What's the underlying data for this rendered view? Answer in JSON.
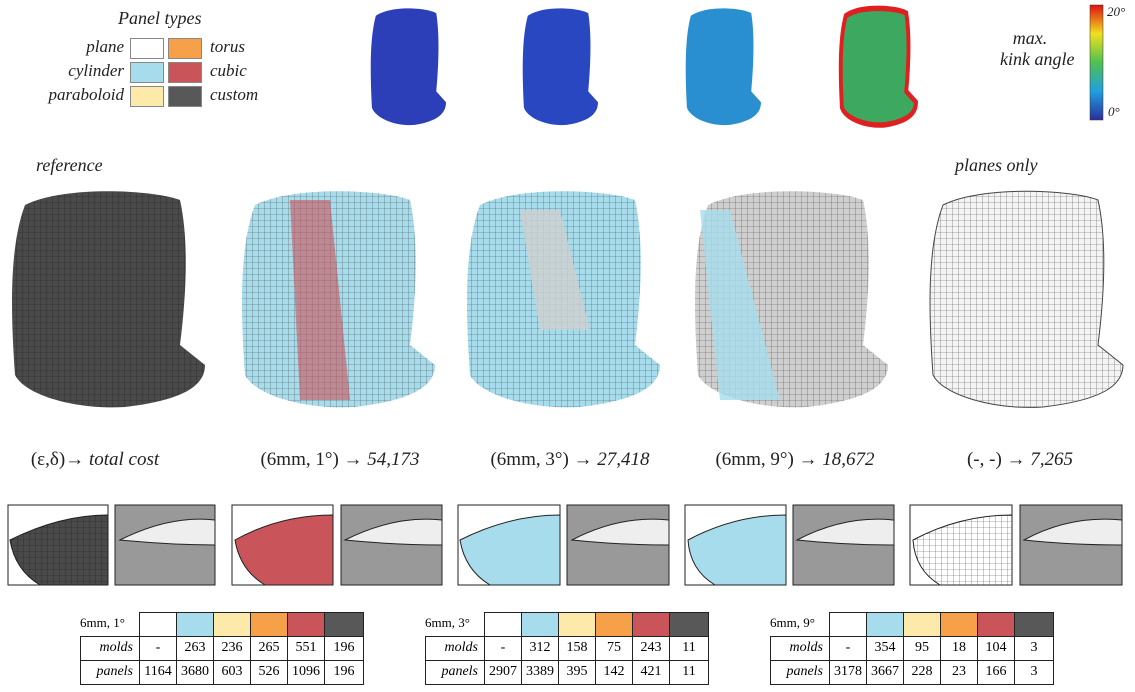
{
  "legend": {
    "title": "Panel types",
    "items": [
      {
        "label": "plane",
        "color": "#ffffff"
      },
      {
        "label": "cylinder",
        "color": "#a6dcec"
      },
      {
        "label": "paraboloid",
        "color": "#fde9a9"
      },
      {
        "label": "torus",
        "color": "#f7a04a"
      },
      {
        "label": "cubic",
        "color": "#c9545a"
      },
      {
        "label": "custom",
        "color": "#585858"
      }
    ]
  },
  "colorbar": {
    "max": "20°",
    "min": "0°",
    "label": [
      "max.",
      "kink angle"
    ]
  },
  "labels": {
    "reference": "reference",
    "planes_only": "planes only"
  },
  "captions": [
    {
      "params": "(ε,δ)→",
      "cost": "total cost"
    },
    {
      "params": "(6mm, 1°) →",
      "cost": "54,173"
    },
    {
      "params": "(6mm, 3°) →",
      "cost": "27,418"
    },
    {
      "params": "(6mm, 9°) →",
      "cost": "18,672"
    },
    {
      "params": "(-, -) →",
      "cost": "7,265"
    }
  ],
  "tables": [
    {
      "header": "6mm, 1°",
      "rows": [
        [
          "molds",
          "-",
          263,
          236,
          265,
          551,
          196
        ],
        [
          "panels",
          1164,
          3680,
          603,
          526,
          1096,
          196
        ]
      ]
    },
    {
      "header": "6mm, 3°",
      "rows": [
        [
          "molds",
          "-",
          312,
          158,
          75,
          243,
          11
        ],
        [
          "panels",
          2907,
          3389,
          395,
          142,
          421,
          11
        ]
      ]
    },
    {
      "header": "6mm, 9°",
      "rows": [
        [
          "molds",
          "-",
          354,
          95,
          18,
          104,
          3
        ],
        [
          "panels",
          3178,
          3667,
          228,
          23,
          166,
          3
        ]
      ]
    }
  ]
}
